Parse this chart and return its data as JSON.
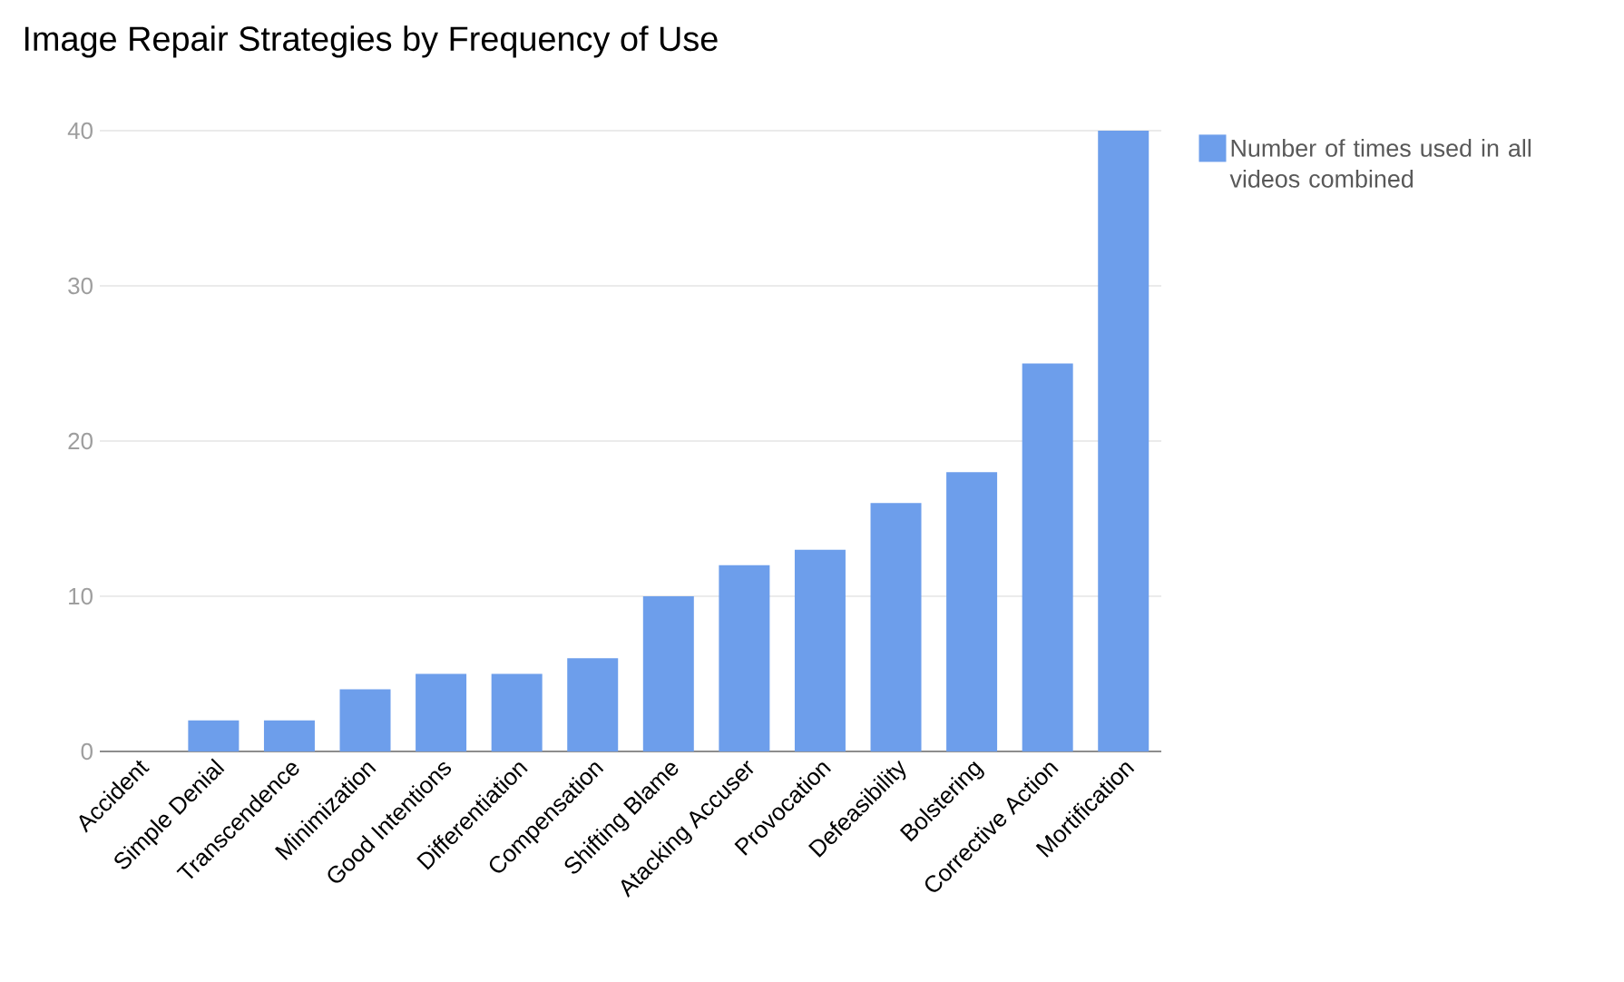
{
  "chart_data": {
    "type": "bar",
    "title": "Image Repair Strategies by Frequency of Use",
    "categories": [
      "Accident",
      "Simple Denial",
      "Transcendence",
      "Minimization",
      "Good Intentions",
      "Differentiation",
      "Compensation",
      "Shifting Blame",
      "Atacking Accuser",
      "Provocation",
      "Defeasibility",
      "Bolstering",
      "Corrective Action",
      "Mortification"
    ],
    "series": [
      {
        "name": "Number of times used in all videos combined",
        "color": "#6d9eeb",
        "values": [
          0,
          2,
          2,
          4,
          5,
          5,
          6,
          10,
          12,
          13,
          16,
          18,
          25,
          40
        ]
      }
    ],
    "ylim": [
      0,
      40
    ],
    "yticks": [
      0,
      10,
      20,
      30,
      40
    ],
    "grid": "y",
    "legend": "top right"
  }
}
